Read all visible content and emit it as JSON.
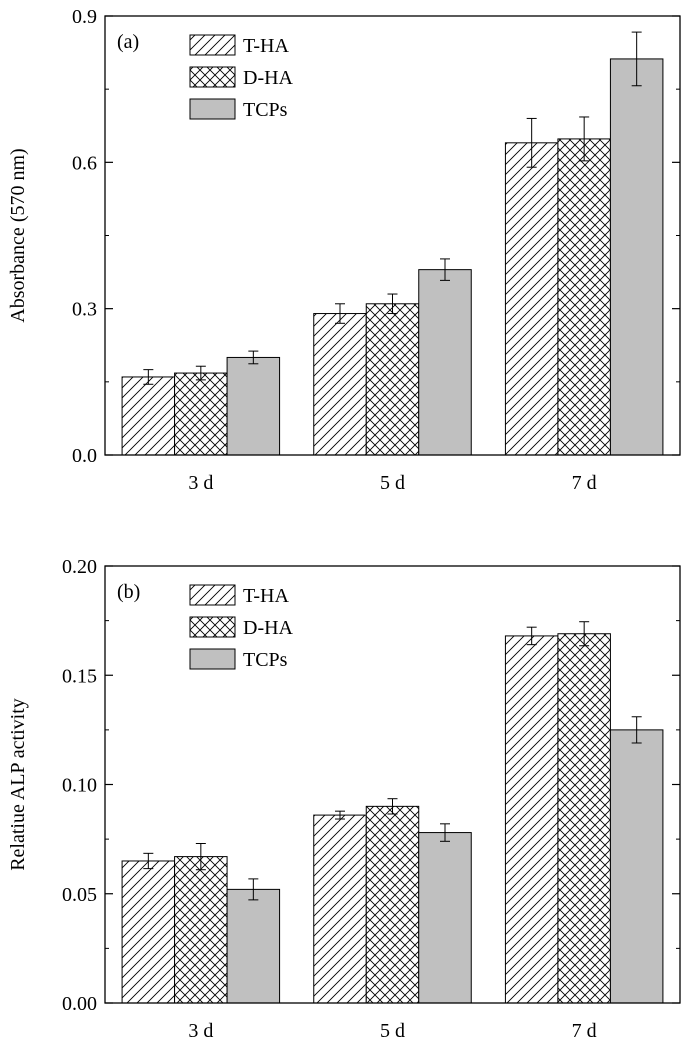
{
  "chart_data": [
    {
      "type": "bar",
      "panel_label": "(a)",
      "categories": [
        "3 d",
        "5 d",
        "7 d"
      ],
      "ylabel": "Absorbance (570 nm)",
      "xlabel": "",
      "ylim": [
        0,
        0.9
      ],
      "yticks": [
        "0.0",
        "0.3",
        "0.6",
        "0.9"
      ],
      "yticks_values": [
        0,
        0.3,
        0.6,
        0.9
      ],
      "legend_position": "top-left",
      "series": [
        {
          "name": "T-HA",
          "fill": "diagonal-hatch",
          "values": [
            0.16,
            0.29,
            0.64
          ],
          "errors": [
            0.015,
            0.02,
            0.05
          ]
        },
        {
          "name": "D-HA",
          "fill": "cross-hatch",
          "values": [
            0.168,
            0.31,
            0.648
          ],
          "errors": [
            0.014,
            0.02,
            0.045
          ]
        },
        {
          "name": "TCPs",
          "fill": "#c0c0c0",
          "values": [
            0.2,
            0.38,
            0.812
          ],
          "errors": [
            0.013,
            0.022,
            0.055
          ]
        }
      ]
    },
    {
      "type": "bar",
      "panel_label": "(b)",
      "categories": [
        "3 d",
        "5 d",
        "7 d"
      ],
      "ylabel": "Relatiue ALP activity",
      "xlabel": "",
      "ylim": [
        0,
        0.2
      ],
      "yticks": [
        "0.00",
        "0.05",
        "0.10",
        "0.15",
        "0.20"
      ],
      "yticks_values": [
        0,
        0.05,
        0.1,
        0.15,
        0.2
      ],
      "legend_position": "top-left",
      "series": [
        {
          "name": "T-HA",
          "fill": "diagonal-hatch",
          "values": [
            0.065,
            0.086,
            0.168
          ],
          "errors": [
            0.0035,
            0.0018,
            0.004
          ]
        },
        {
          "name": "D-HA",
          "fill": "cross-hatch",
          "values": [
            0.067,
            0.09,
            0.169
          ],
          "errors": [
            0.006,
            0.0035,
            0.0055
          ]
        },
        {
          "name": "TCPs",
          "fill": "#c0c0c0",
          "values": [
            0.052,
            0.078,
            0.125
          ],
          "errors": [
            0.0048,
            0.004,
            0.006
          ]
        }
      ]
    }
  ]
}
